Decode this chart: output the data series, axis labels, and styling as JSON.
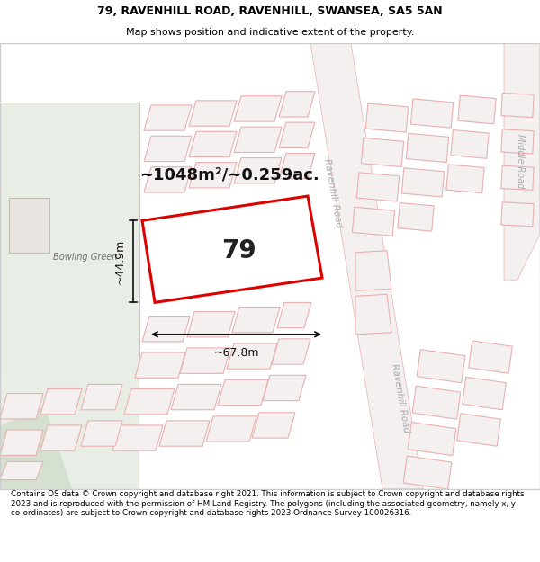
{
  "title_line1": "79, RAVENHILL ROAD, RAVENHILL, SWANSEA, SA5 5AN",
  "title_line2": "Map shows position and indicative extent of the property.",
  "footer_text": "Contains OS data © Crown copyright and database right 2021. This information is subject to Crown copyright and database rights 2023 and is reproduced with the permission of HM Land Registry. The polygons (including the associated geometry, namely x, y co-ordinates) are subject to Crown copyright and database rights 2023 Ordnance Survey 100026316.",
  "label_79": "79",
  "area_label": "~1048m²/~0.259ac.",
  "dim_width": "~67.8m",
  "dim_height": "~44.9m",
  "bowling_green_label": "Bowling Green",
  "road_label1": "Ravenhill Road",
  "road_label2": "Ravenhill Road",
  "middle_road_label": "Middle Road",
  "bg_color": "#f5f3ee",
  "map_bg_color": "#f5f3ee",
  "bowling_bg": "#e8ede5",
  "building_fill": "#f5f0f0",
  "building_edge": "#e8b0b0",
  "road_fill": "#f5f0f0",
  "road_edge": "#e8b0b0",
  "highlight_edge": "#dd0000",
  "highlight_fill": "#ffffff",
  "dim_color": "#111111",
  "text_color": "#333333",
  "road_text_color": "#aaaaaa"
}
